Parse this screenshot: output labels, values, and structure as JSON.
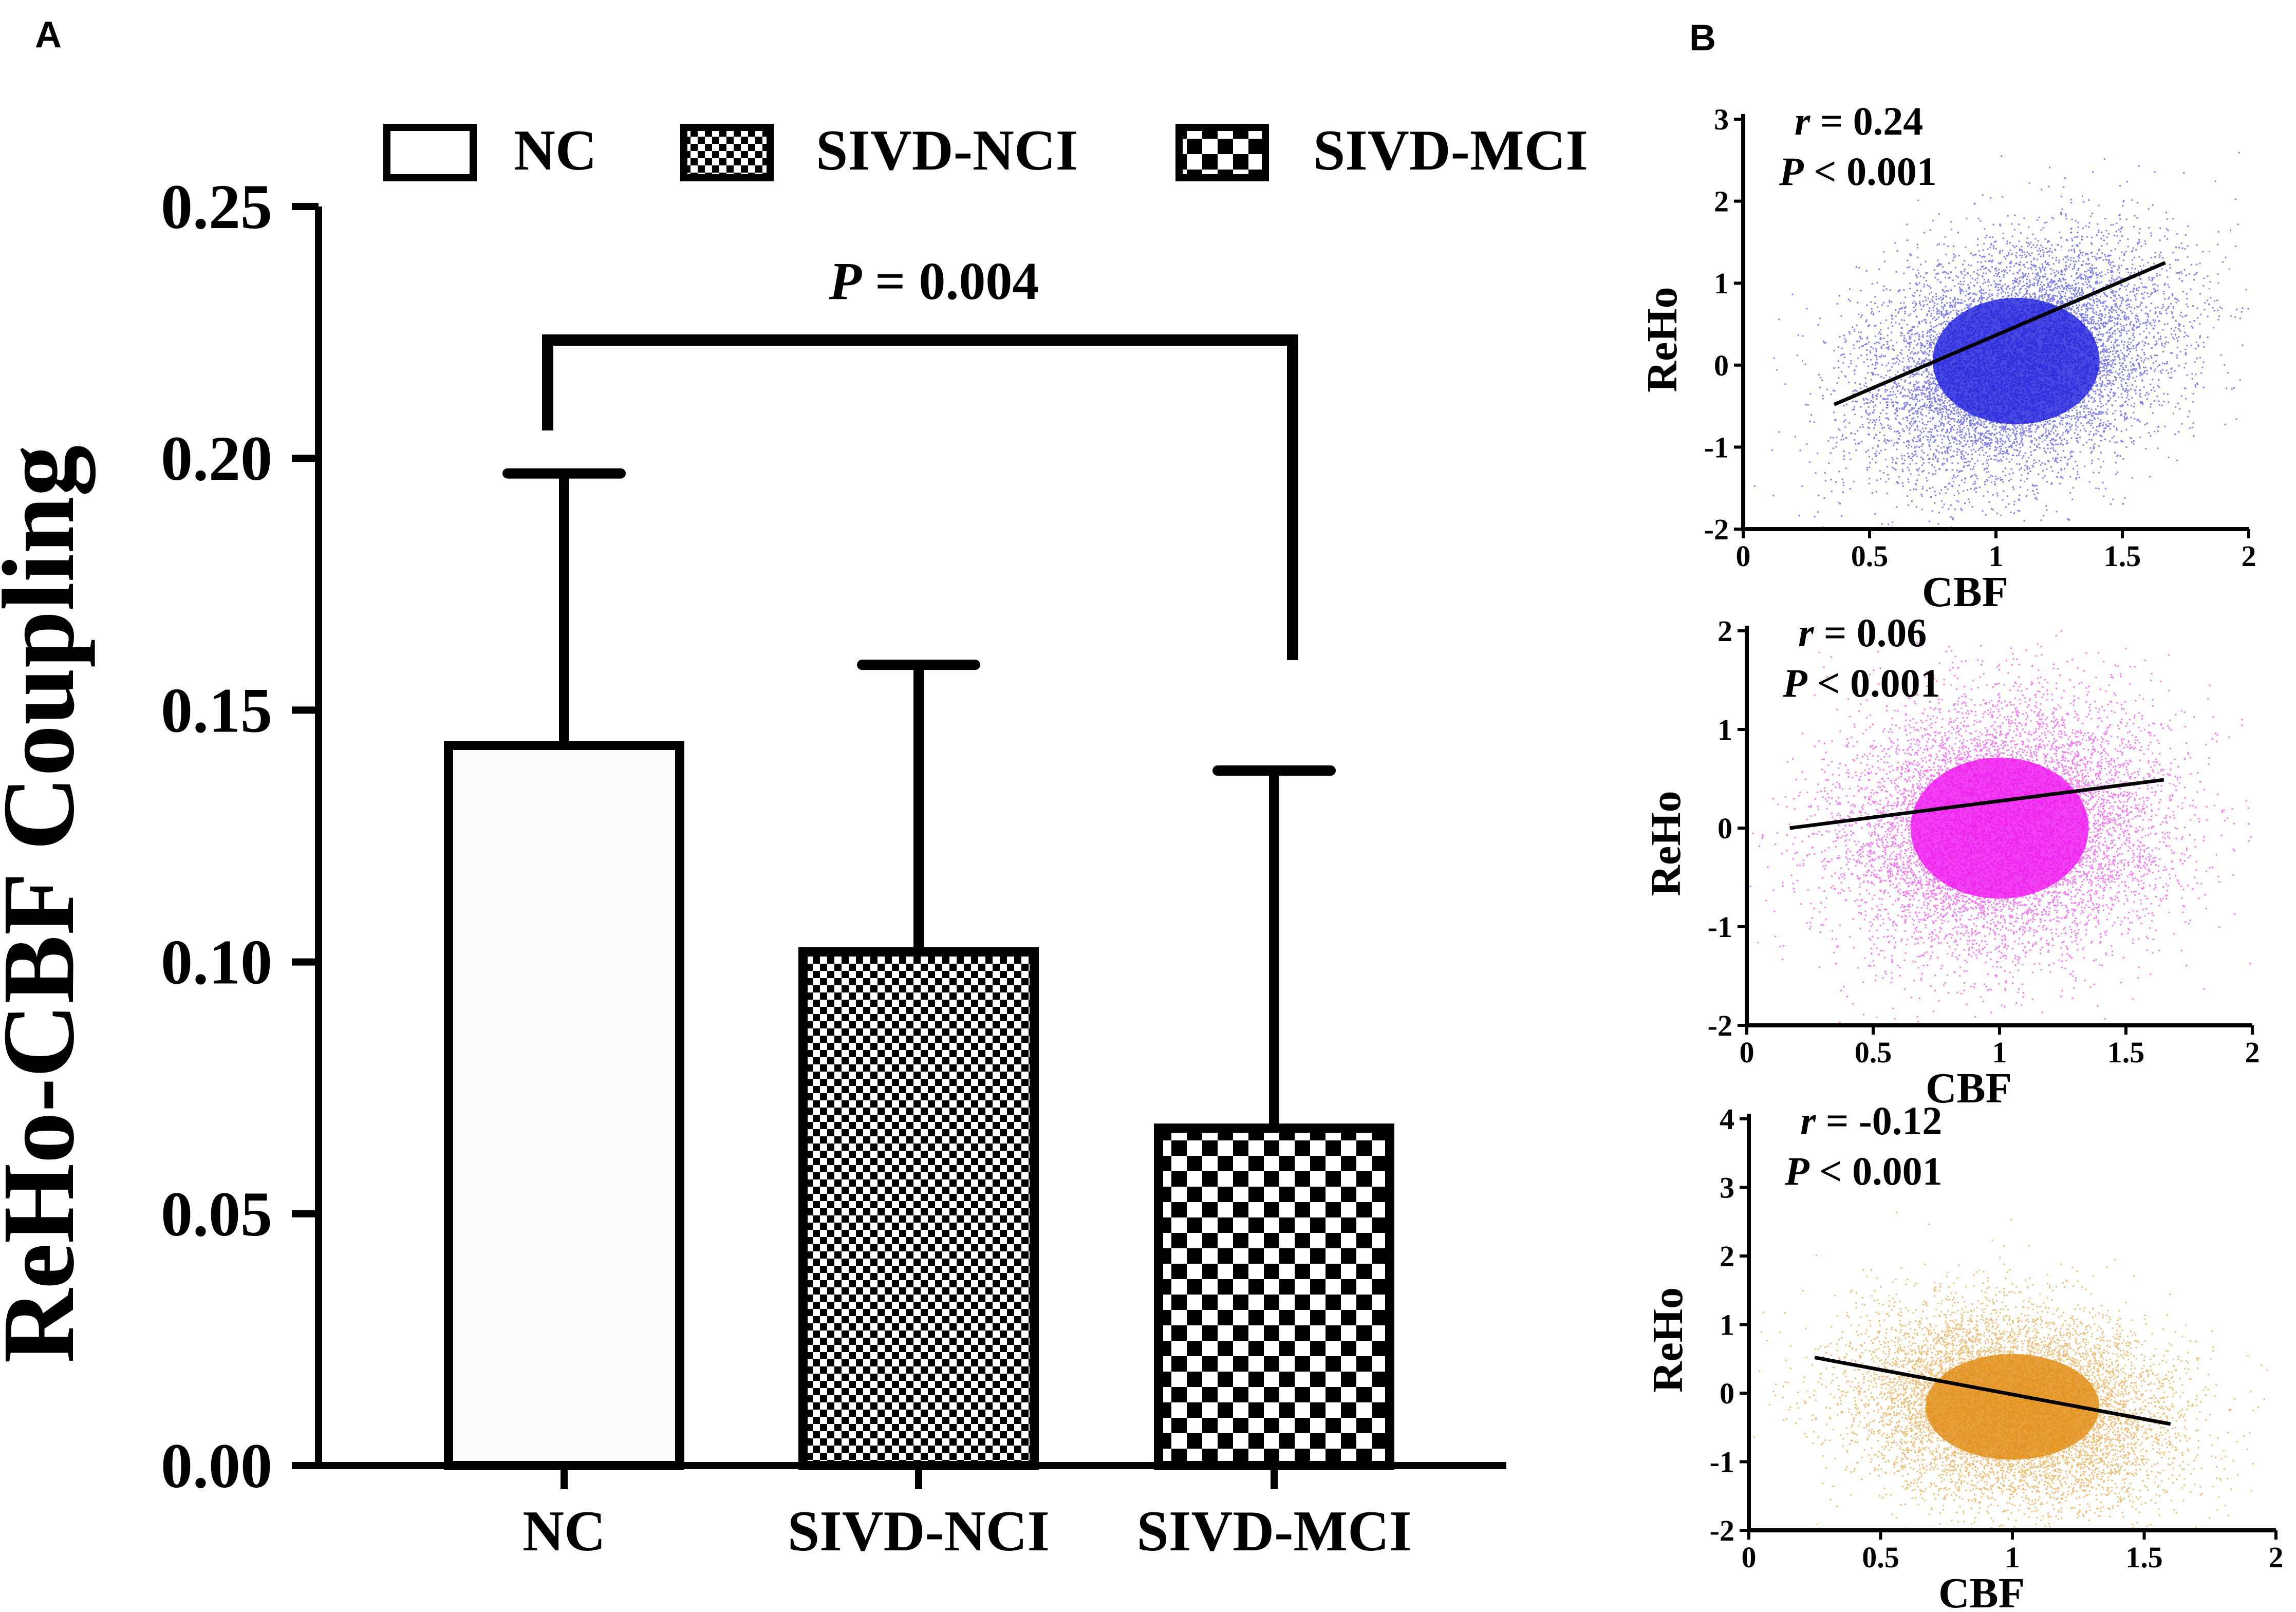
{
  "panel_a": {
    "panel_label": "A",
    "legend": [
      {
        "label": "NC",
        "pattern": "white"
      },
      {
        "label": "SIVD-NCI",
        "pattern": "fine-check"
      },
      {
        "label": "SIVD-MCI",
        "pattern": "coarse-check"
      }
    ],
    "significance": {
      "p_prefix": "P",
      "p_rest": " = 0.004"
    }
  },
  "panel_b": {
    "panel_label": "B"
  },
  "chart_data": [
    {
      "type": "bar",
      "title": "",
      "ylabel": "ReHo-CBF Coupling",
      "xlabel": "",
      "categories": [
        "NC",
        "SIVD-NCI",
        "SIVD-MCI"
      ],
      "values": [
        0.143,
        0.102,
        0.067
      ],
      "error_upper": [
        0.197,
        0.159,
        0.138
      ],
      "ylim": [
        0,
        0.25
      ],
      "yticks": [
        "0.00",
        "0.05",
        "0.10",
        "0.15",
        "0.20",
        "0.25"
      ],
      "comparison": {
        "from": "NC",
        "to": "SIVD-MCI",
        "p_value": "P = 0.004"
      }
    },
    {
      "type": "scatter",
      "xlabel": "CBF",
      "ylabel": "ReHo",
      "xlim": [
        0,
        2
      ],
      "ylim": [
        -2,
        3
      ],
      "xticks": [
        "0",
        "0.5",
        "1",
        "1.5",
        "2"
      ],
      "yticks": [
        "-2",
        "-1",
        "0",
        "1",
        "2",
        "3"
      ],
      "r_prefix": "r",
      "r_rest": " = 0.24",
      "p_prefix": "P",
      "p_rest": " < 0.001",
      "color": "#1a1adb",
      "cloud": {
        "cx": 1.08,
        "cy": 0.05,
        "sx": 0.3,
        "sy": 0.7
      },
      "fit": {
        "x": [
          0.36,
          1.67
        ],
        "y": [
          -0.48,
          1.25
        ]
      }
    },
    {
      "type": "scatter",
      "xlabel": "CBF",
      "ylabel": "ReHo",
      "xlim": [
        0,
        2
      ],
      "ylim": [
        -2,
        2
      ],
      "xticks": [
        "0",
        "0.5",
        "1",
        "1.5",
        "2"
      ],
      "yticks": [
        "-2",
        "-1",
        "0",
        "1",
        "2"
      ],
      "r_prefix": "r",
      "r_rest": " = 0.06",
      "p_prefix": "P",
      "p_rest": " < 0.001",
      "color": "#ee10ee",
      "cloud": {
        "cx": 1.0,
        "cy": 0.0,
        "sx": 0.32,
        "sy": 0.65
      },
      "fit": {
        "x": [
          0.17,
          1.65
        ],
        "y": [
          0.0,
          0.49
        ]
      }
    },
    {
      "type": "scatter",
      "xlabel": "CBF",
      "ylabel": "ReHo",
      "xlim": [
        0,
        2
      ],
      "ylim": [
        -2,
        4
      ],
      "xticks": [
        "0",
        "0.5",
        "1",
        "1.5",
        "2"
      ],
      "yticks": [
        "-2",
        "-1",
        "0",
        "1",
        "2",
        "3",
        "4"
      ],
      "r_prefix": "r",
      "r_rest": " = -0.12",
      "p_prefix": "P",
      "p_rest": " < 0.001",
      "color": "#e08a0c",
      "cloud": {
        "cx": 1.0,
        "cy": -0.2,
        "sx": 0.3,
        "sy": 0.7
      },
      "fit": {
        "x": [
          0.25,
          1.6
        ],
        "y": [
          0.52,
          -0.45
        ]
      }
    }
  ]
}
